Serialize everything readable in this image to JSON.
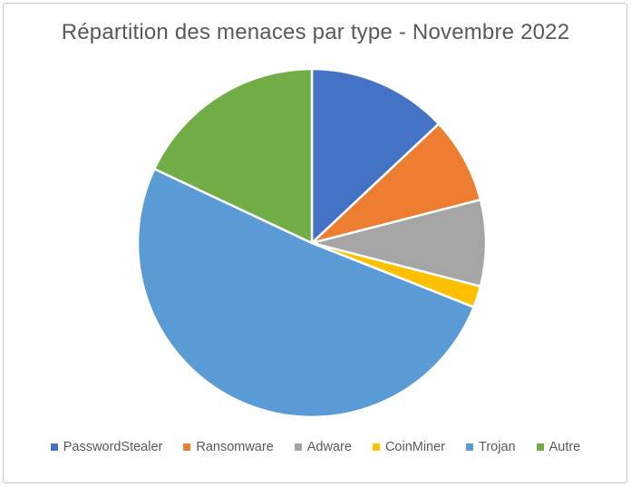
{
  "window": {
    "background_color": "#ffffff",
    "frame_border_color": "#c8c8c8"
  },
  "chart_data": {
    "type": "pie",
    "title": "Répartition des menaces par type - Novembre 2022",
    "title_color": "#595959",
    "legend_position": "bottom",
    "legend_text_color": "#595959",
    "start_angle_deg": 0,
    "direction": "clockwise",
    "slice_border_color": "#ffffff",
    "value_format": "percent (estimated from slice angles)",
    "slices": [
      {
        "label": "PasswordStealer",
        "value": 13,
        "color": "#4472C4"
      },
      {
        "label": "Ransomware",
        "value": 8,
        "color": "#ED7D31"
      },
      {
        "label": "Adware",
        "value": 8,
        "color": "#A5A5A5"
      },
      {
        "label": "CoinMiner",
        "value": 2,
        "color": "#FFC000"
      },
      {
        "label": "Trojan",
        "value": 51,
        "color": "#5B9BD5"
      },
      {
        "label": "Autre",
        "value": 18,
        "color": "#70AD47"
      }
    ]
  }
}
